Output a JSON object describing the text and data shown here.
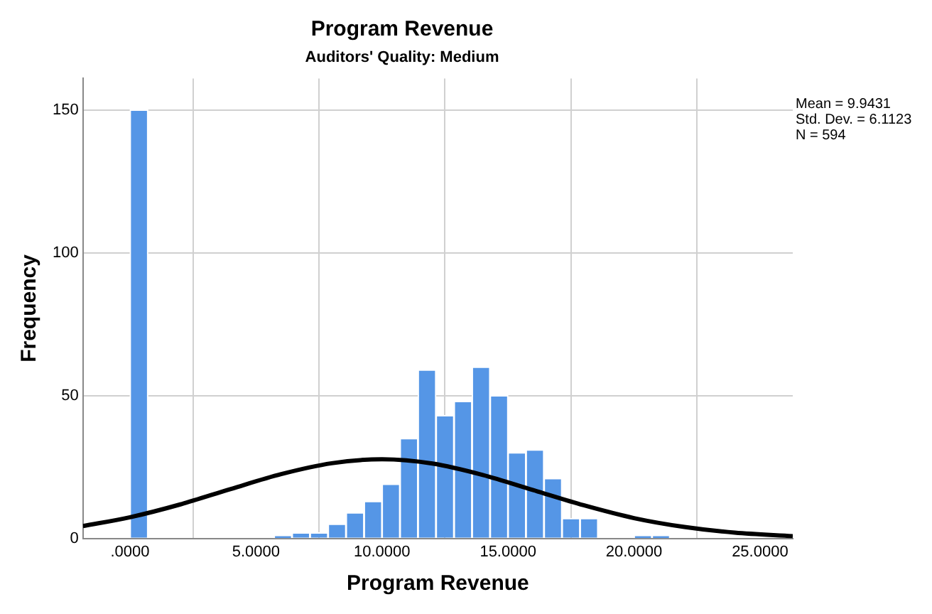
{
  "chart_data": {
    "type": "histogram",
    "title": "Program Revenue",
    "subtitle": "Auditors' Quality: Medium",
    "xlabel": "Program Revenue",
    "ylabel": "Frequency",
    "series": [
      {
        "type": "histogram",
        "color": "#5596e6",
        "bins": [
          0,
          0.71,
          1.43,
          2.14,
          2.86,
          3.57,
          4.29,
          5,
          5.71,
          6.43,
          7.14,
          7.86,
          8.57,
          9.29,
          10,
          10.71,
          11.43,
          12.14,
          12.86,
          13.57,
          14.29,
          15,
          15.71,
          16.43,
          17.14,
          17.86,
          18.57,
          19.29,
          20,
          20.71,
          21.43
        ],
        "values": [
          150,
          0,
          0,
          0,
          0,
          0,
          0,
          0,
          1,
          2,
          2,
          5,
          9,
          13,
          19,
          35,
          59,
          43,
          48,
          60,
          50,
          30,
          31,
          21,
          7,
          7,
          0,
          0,
          1,
          1
        ]
      },
      {
        "type": "line",
        "color": "#000000",
        "x": [
          -1.87,
          0,
          2,
          4,
          6,
          8,
          10,
          12,
          14,
          16,
          18,
          20,
          22,
          24,
          26.3
        ],
        "values": [
          4.3,
          7.4,
          11.9,
          17.3,
          22.5,
          26.3,
          27.7,
          26.2,
          22.2,
          16.9,
          11.6,
          7.1,
          4.0,
          2.0,
          0.8
        ]
      }
    ],
    "xlim": [
      -1.87,
      26.3
    ],
    "xticks": [
      {
        "value": 0,
        "label": ".0000"
      },
      {
        "value": 5,
        "label": "5.0000"
      },
      {
        "value": 10,
        "label": "10.0000"
      },
      {
        "value": 15,
        "label": "15.0000"
      },
      {
        "value": 20,
        "label": "20.0000"
      },
      {
        "value": 25,
        "label": "25.0000"
      }
    ],
    "ylim": [
      0,
      161
    ],
    "yticks": [
      0,
      50,
      100,
      150
    ],
    "grid": true,
    "legend": false,
    "annotations": [
      "Mean = 9.9431",
      "Std. Dev. = 6.1123",
      "N = 594"
    ]
  }
}
